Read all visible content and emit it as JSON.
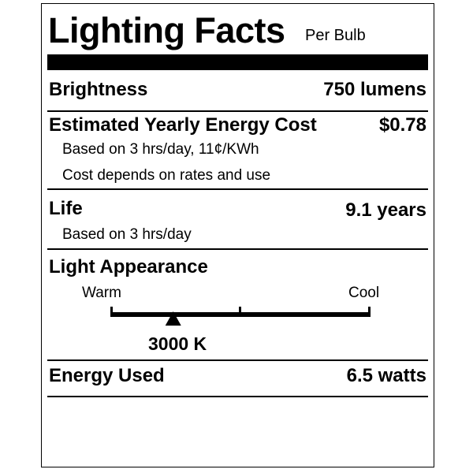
{
  "title": "Lighting Facts",
  "title_suffix": "Per Bulb",
  "brightness": {
    "label": "Brightness",
    "value": "750 lumens"
  },
  "energy_cost": {
    "label": "Estimated Yearly Energy Cost",
    "value": "$0.78",
    "notes": [
      "Based on 3 hrs/day, 11¢/KWh",
      "Cost depends on rates and use"
    ]
  },
  "life": {
    "label": "Life",
    "value": "9.1 years",
    "notes": [
      "Based on 3 hrs/day"
    ]
  },
  "light_appearance": {
    "label": "Light Appearance",
    "warm_label": "Warm",
    "cool_label": "Cool",
    "value": "3000 K",
    "position_fraction": 0.24
  },
  "energy_used": {
    "label": "Energy Used",
    "value": "6.5 watts"
  }
}
